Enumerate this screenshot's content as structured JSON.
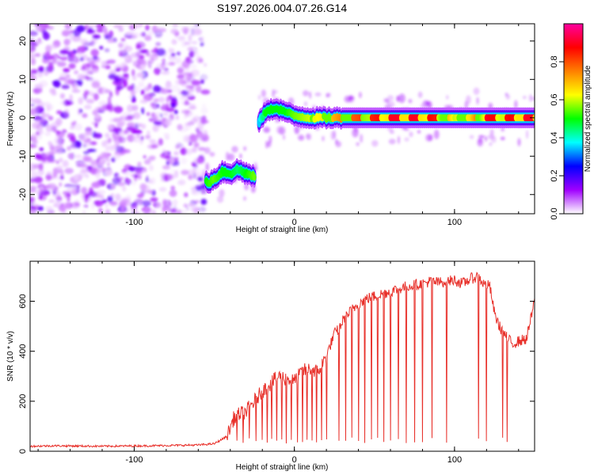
{
  "title": "S197.2026.004.07.26.G14",
  "chart_data": [
    {
      "type": "heatmap",
      "name": "spectrogram",
      "xlabel": "Height of straight line (km)",
      "ylabel": "Frequency (Hz)",
      "xlim": [
        -165,
        150
      ],
      "ylim": [
        -25,
        24.5
      ],
      "xticks": [
        -100,
        0,
        100
      ],
      "xtick_labels": [
        "-100",
        "0",
        "100"
      ],
      "yticks": [
        20,
        10,
        0,
        -10,
        -20
      ],
      "ytick_labels": [
        "20",
        "10",
        "0",
        "-10",
        "-20"
      ],
      "colorbar": {
        "label": "Normalized spectral amplitude",
        "range": [
          0.0,
          1.0
        ],
        "ticks": [
          0.0,
          0.2,
          0.4,
          0.6,
          0.8
        ],
        "tick_labels": [
          "0.0",
          "0.2",
          "0.4",
          "0.6",
          "0.8"
        ],
        "colormap": [
          "#ffffff",
          "#a000ff",
          "#0000ff",
          "#00ffff",
          "#00ff00",
          "#ffff00",
          "#ff8000",
          "#ff0000",
          "#ff00a0"
        ]
      },
      "noise_region": {
        "x_range": [
          -165,
          -55
        ],
        "y_range": [
          -25,
          24.5
        ],
        "amplitude_range": [
          0.02,
          0.18
        ]
      },
      "signal_track": [
        {
          "x": -55,
          "y": -17,
          "amp": 0.5
        },
        {
          "x": -50,
          "y": -16,
          "amp": 0.55
        },
        {
          "x": -45,
          "y": -14,
          "amp": 0.5
        },
        {
          "x": -40,
          "y": -14.5,
          "amp": 0.5
        },
        {
          "x": -35,
          "y": -13.5,
          "amp": 0.45
        },
        {
          "x": -30,
          "y": -14.5,
          "amp": 0.5
        },
        {
          "x": -25,
          "y": -15.5,
          "amp": 0.55
        },
        {
          "x": -22,
          "y": -1,
          "amp": 0.35
        },
        {
          "x": -18,
          "y": 1.5,
          "amp": 0.5
        },
        {
          "x": -12,
          "y": 2.5,
          "amp": 0.5
        },
        {
          "x": -5,
          "y": 1.5,
          "amp": 0.5
        },
        {
          "x": 0,
          "y": 0.5,
          "amp": 0.55
        },
        {
          "x": 10,
          "y": 0,
          "amp": 0.6
        },
        {
          "x": 20,
          "y": 0,
          "amp": 0.65
        },
        {
          "x": 30,
          "y": 0,
          "amp": 0.75
        },
        {
          "x": 40,
          "y": 0,
          "amp": 0.8
        },
        {
          "x": 50,
          "y": 0,
          "amp": 0.85
        },
        {
          "x": 60,
          "y": 0,
          "amp": 0.9
        },
        {
          "x": 70,
          "y": 0,
          "amp": 0.9
        },
        {
          "x": 80,
          "y": 0,
          "amp": 0.9
        },
        {
          "x": 90,
          "y": 0,
          "amp": 0.85
        },
        {
          "x": 100,
          "y": 0,
          "amp": 0.6
        },
        {
          "x": 110,
          "y": 0,
          "amp": 0.65
        },
        {
          "x": 120,
          "y": 0,
          "amp": 0.9
        },
        {
          "x": 130,
          "y": 0,
          "amp": 0.85
        },
        {
          "x": 140,
          "y": 0,
          "amp": 0.9
        },
        {
          "x": 150,
          "y": 0,
          "amp": 0.9
        }
      ]
    },
    {
      "type": "line",
      "name": "snr",
      "xlabel": "Height of straight line (km)",
      "ylabel": "SNR (10 * v/v)",
      "xlim": [
        -165,
        150
      ],
      "ylim": [
        0,
        760
      ],
      "xticks": [
        -100,
        0,
        100
      ],
      "xtick_labels": [
        "-100",
        "0",
        "100"
      ],
      "yticks": [
        0,
        200,
        400,
        600
      ],
      "ytick_labels": [
        "0",
        "200",
        "400",
        "600"
      ],
      "color": "#e8302a",
      "series": [
        {
          "name": "SNR",
          "x": [
            -165,
            -150,
            -120,
            -90,
            -60,
            -50,
            -42,
            -38,
            -34,
            -30,
            -25,
            -20,
            -15,
            -10,
            -5,
            0,
            5,
            10,
            15,
            20,
            25,
            28,
            30,
            35,
            40,
            45,
            50,
            55,
            60,
            65,
            70,
            75,
            80,
            85,
            90,
            95,
            100,
            105,
            110,
            115,
            118,
            122,
            125,
            128,
            132,
            136,
            140,
            145,
            150
          ],
          "y": [
            20,
            22,
            20,
            22,
            25,
            30,
            60,
            130,
            150,
            160,
            200,
            240,
            270,
            300,
            290,
            280,
            320,
            330,
            320,
            380,
            470,
            490,
            520,
            560,
            590,
            610,
            620,
            630,
            640,
            650,
            660,
            665,
            670,
            680,
            675,
            680,
            685,
            670,
            690,
            700,
            670,
            660,
            550,
            500,
            460,
            430,
            440,
            450,
            600
          ],
          "dropouts": [
            -36,
            -32,
            -28,
            -24,
            -20,
            -17,
            -14,
            -11,
            -8,
            -5,
            -2,
            2,
            5,
            8,
            11,
            14,
            17,
            20,
            28,
            32,
            36,
            40,
            44,
            48,
            52,
            56,
            60,
            65,
            70,
            75,
            80,
            86,
            95,
            115,
            120,
            130,
            133
          ]
        }
      ]
    }
  ]
}
